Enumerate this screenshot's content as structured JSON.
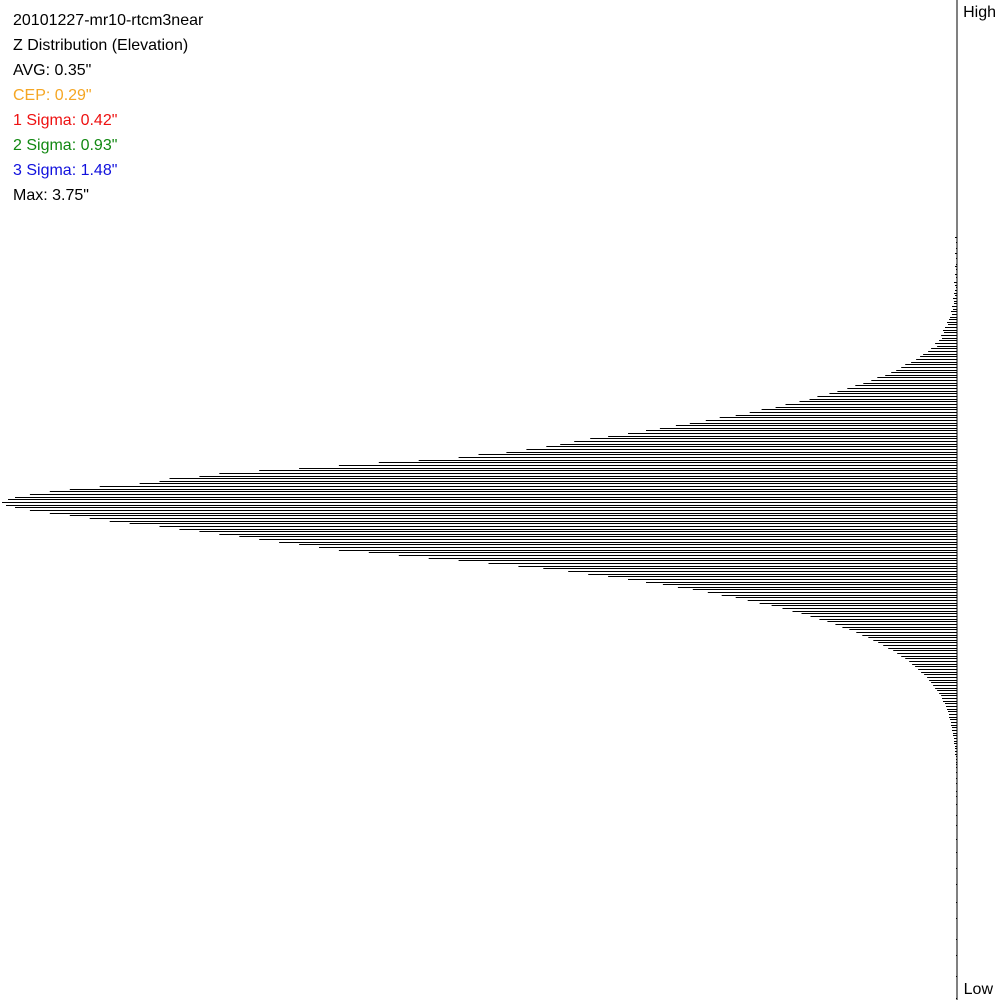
{
  "title": "20101227-mr10-rtcm3near",
  "subtitle": "Z Distribution (Elevation)",
  "stats": [
    {
      "text": "AVG: 0.35\"",
      "color": "#000000"
    },
    {
      "text": "CEP: 0.29\"",
      "color": "#f5a623"
    },
    {
      "text": "1 Sigma: 0.42\"",
      "color": "#ee1111"
    },
    {
      "text": "2 Sigma: 0.93\"",
      "color": "#118811"
    },
    {
      "text": "3 Sigma: 1.48\"",
      "color": "#1111dd"
    },
    {
      "text": "Max: 3.75\"",
      "color": "#000000"
    }
  ],
  "axis": {
    "high_label": "High",
    "low_label": "Low"
  },
  "chart_data": {
    "type": "bar",
    "orientation": "horizontal",
    "title": "20101227-mr10-rtcm3near",
    "subtitle": "Z Distribution (Elevation)",
    "y_range_labels": [
      "High",
      "Low"
    ],
    "grid": false,
    "legend": "none",
    "note": "",
    "values": [
      2,
      0,
      1,
      0,
      1,
      0,
      2,
      0,
      1,
      0,
      1,
      2,
      1,
      0,
      2,
      1,
      0,
      3,
      2,
      1,
      2,
      3,
      2,
      4,
      3,
      3,
      5,
      4,
      6,
      5,
      7,
      8,
      10,
      9,
      12,
      14,
      13,
      16,
      15,
      18,
      22,
      20,
      26,
      29,
      34,
      37,
      41,
      46,
      52,
      56,
      61,
      66,
      72,
      80,
      86,
      94,
      102,
      110,
      120,
      128,
      140,
      148,
      158,
      172,
      182,
      196,
      208,
      222,
      238,
      252,
      268,
      282,
      298,
      312,
      330,
      350,
      368,
      384,
      398,
      412,
      432,
      452,
      480,
      500,
      540,
      580,
      620,
      660,
      700,
      740,
      760,
      790,
      800,
      820,
      860,
      890,
      910,
      930,
      945,
      952,
      958,
      954,
      945,
      930,
      910,
      890,
      870,
      850,
      830,
      800,
      780,
      760,
      740,
      720,
      700,
      680,
      660,
      640,
      620,
      590,
      560,
      530,
      500,
      470,
      440,
      415,
      390,
      370,
      350,
      330,
      312,
      295,
      280,
      265,
      250,
      236,
      222,
      210,
      198,
      186,
      175,
      165,
      156,
      147,
      138,
      130,
      122,
      115,
      108,
      101,
      95,
      89,
      84,
      79,
      74,
      69,
      64,
      60,
      56,
      52,
      48,
      45,
      42,
      39,
      36,
      33,
      30,
      28,
      26,
      24,
      22,
      20,
      18,
      16,
      15,
      14,
      12,
      11,
      10,
      9,
      8,
      8,
      7,
      6,
      6,
      5,
      5,
      4,
      4,
      3,
      3,
      3,
      2,
      2,
      2,
      2,
      1,
      1,
      1,
      1,
      1,
      0,
      1,
      0,
      1,
      0,
      1,
      0,
      0,
      1,
      0,
      1,
      0,
      0,
      1,
      0,
      0,
      0,
      1,
      0,
      0,
      0,
      1,
      0,
      0,
      0,
      0,
      1,
      0,
      0,
      0,
      0,
      1,
      0,
      0,
      0,
      0,
      0,
      1,
      0,
      0,
      0,
      0,
      0,
      1,
      0,
      0,
      0,
      0,
      0,
      0,
      1,
      0,
      0,
      0,
      0,
      0,
      1,
      0,
      0,
      0,
      0,
      0,
      0,
      0,
      1,
      0,
      0,
      0,
      0,
      0,
      1,
      0,
      0,
      0,
      0,
      0,
      0,
      0,
      1,
      0,
      0,
      0,
      0,
      0,
      0,
      0,
      1,
      0,
      0,
      0,
      0,
      0,
      0,
      0,
      0,
      0,
      1
    ]
  }
}
